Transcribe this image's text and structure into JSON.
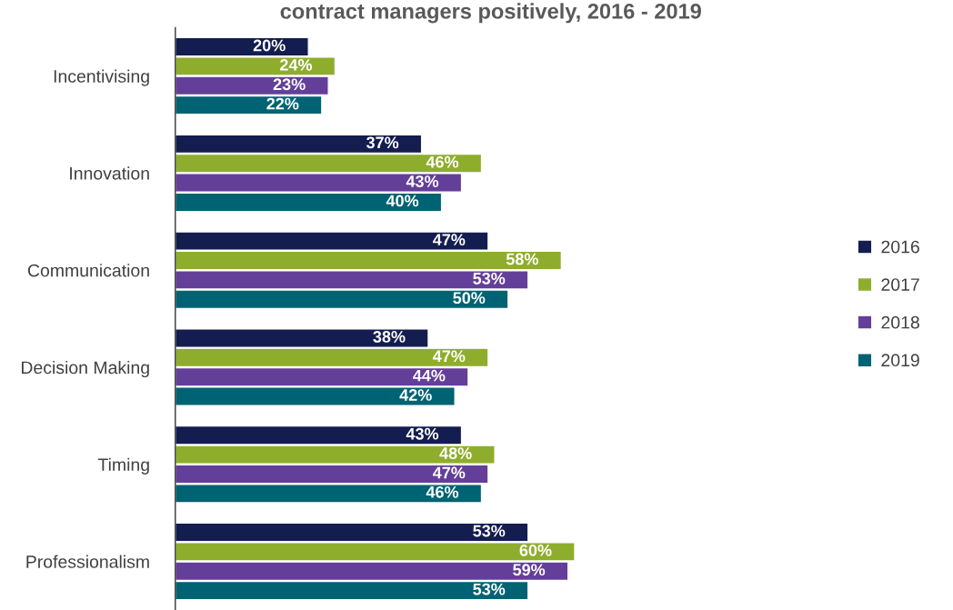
{
  "chart_data": {
    "type": "bar",
    "orientation": "horizontal",
    "title": "contract managers positively, 2016 - 2019",
    "categories": [
      "Incentivising",
      "Innovation",
      "Communication",
      "Decision Making",
      "Timing",
      "Professionalism"
    ],
    "series": [
      {
        "name": "2016",
        "color": "#141d4f",
        "values": [
          20,
          37,
          47,
          38,
          43,
          53
        ],
        "value_labels": [
          "20%",
          "37%",
          "47%",
          "38%",
          "43%",
          "53%"
        ]
      },
      {
        "name": "2017",
        "color": "#8fad2c",
        "values": [
          24,
          46,
          58,
          47,
          48,
          60
        ],
        "value_labels": [
          "24%",
          "46%",
          "58%",
          "47%",
          "48%",
          "60%"
        ]
      },
      {
        "name": "2018",
        "color": "#643f99",
        "values": [
          23,
          43,
          53,
          44,
          47,
          59
        ],
        "value_labels": [
          "23%",
          "43%",
          "53%",
          "44%",
          "47%",
          "59%"
        ]
      },
      {
        "name": "2019",
        "color": "#006373",
        "values": [
          22,
          40,
          50,
          42,
          46,
          53
        ],
        "value_labels": [
          "22%",
          "40%",
          "50%",
          "42%",
          "46%",
          "53%"
        ]
      }
    ],
    "legend": "right",
    "tick_labels": "y",
    "grid": false
  }
}
